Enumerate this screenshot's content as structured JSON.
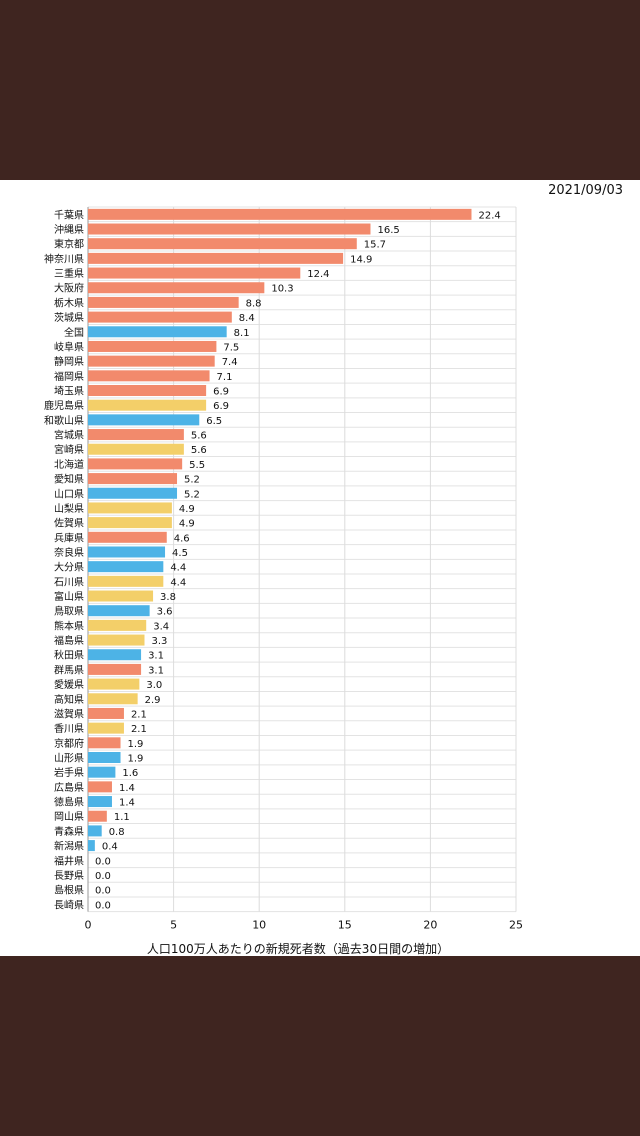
{
  "date": "2021/09/03",
  "colors": {
    "red": "#f28a6c",
    "blue": "#4db3e6",
    "yellow": "#f3cf69"
  },
  "chart_data": {
    "type": "bar",
    "orientation": "horizontal",
    "xlabel": "人口100万人あたりの新規死者数（過去30日間の増加）",
    "xlim": [
      0,
      25
    ],
    "xticks": [
      0,
      5,
      10,
      15,
      20,
      25
    ],
    "grid": true,
    "categories": [
      "千葉県",
      "沖縄県",
      "東京都",
      "神奈川県",
      "三重県",
      "大阪府",
      "栃木県",
      "茨城県",
      "全国",
      "岐阜県",
      "静岡県",
      "福岡県",
      "埼玉県",
      "鹿児島県",
      "和歌山県",
      "宮城県",
      "宮崎県",
      "北海道",
      "愛知県",
      "山口県",
      "山梨県",
      "佐賀県",
      "兵庫県",
      "奈良県",
      "大分県",
      "石川県",
      "富山県",
      "鳥取県",
      "熊本県",
      "福島県",
      "秋田県",
      "群馬県",
      "愛媛県",
      "高知県",
      "滋賀県",
      "香川県",
      "京都府",
      "山形県",
      "岩手県",
      "広島県",
      "徳島県",
      "岡山県",
      "青森県",
      "新潟県",
      "福井県",
      "長野県",
      "島根県",
      "長崎県"
    ],
    "values": [
      22.4,
      16.5,
      15.7,
      14.9,
      12.4,
      10.3,
      8.8,
      8.4,
      8.1,
      7.5,
      7.4,
      7.1,
      6.9,
      6.9,
      6.5,
      5.6,
      5.6,
      5.5,
      5.2,
      5.2,
      4.9,
      4.9,
      4.6,
      4.5,
      4.4,
      4.4,
      3.8,
      3.6,
      3.4,
      3.3,
      3.1,
      3.1,
      3.0,
      2.9,
      2.1,
      2.1,
      1.9,
      1.9,
      1.6,
      1.4,
      1.4,
      1.1,
      0.8,
      0.4,
      0.0,
      0.0,
      0.0,
      0.0
    ],
    "value_labels": [
      "22.4",
      "16.5",
      "15.7",
      "14.9",
      "12.4",
      "10.3",
      "8.8",
      "8.4",
      "8.1",
      "7.5",
      "7.4",
      "7.1",
      "6.9",
      "6.9",
      "6.5",
      "5.6",
      "5.6",
      "5.5",
      "5.2",
      "5.2",
      "4.9",
      "4.9",
      "4.6",
      "4.5",
      "4.4",
      "4.4",
      "3.8",
      "3.6",
      "3.4",
      "3.3",
      "3.1",
      "3.1",
      "3.0",
      "2.9",
      "2.1",
      "2.1",
      "1.9",
      "1.9",
      "1.6",
      "1.4",
      "1.4",
      "1.1",
      "0.8",
      "0.4",
      "0.0",
      "0.0",
      "0.0",
      "0.0"
    ],
    "bar_colors": [
      "red",
      "red",
      "red",
      "red",
      "red",
      "red",
      "red",
      "red",
      "blue",
      "red",
      "red",
      "red",
      "red",
      "yellow",
      "blue",
      "red",
      "yellow",
      "red",
      "red",
      "blue",
      "yellow",
      "yellow",
      "red",
      "blue",
      "blue",
      "yellow",
      "yellow",
      "blue",
      "yellow",
      "yellow",
      "blue",
      "red",
      "yellow",
      "yellow",
      "red",
      "yellow",
      "red",
      "blue",
      "blue",
      "red",
      "blue",
      "red",
      "blue",
      "blue",
      "red",
      "red",
      "red",
      "red"
    ]
  }
}
